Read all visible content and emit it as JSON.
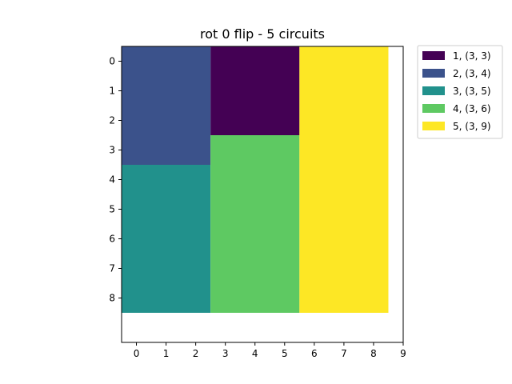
{
  "chart_data": {
    "type": "heatmap",
    "title": "rot 0 flip  - 5 circuits",
    "xlabel": "",
    "ylabel": "",
    "xlim": [
      -0.5,
      9
    ],
    "ylim": [
      9.5,
      -0.5
    ],
    "xticks": [
      0,
      1,
      2,
      3,
      4,
      5,
      6,
      7,
      8,
      9
    ],
    "yticks": [
      0,
      1,
      2,
      3,
      4,
      5,
      6,
      7,
      8
    ],
    "grid": false,
    "legend_position": "outside-top-right",
    "circuits": [
      {
        "id": 1,
        "label": "1, (3, 3)",
        "x": 3,
        "y": 0,
        "w": 3,
        "h": 3,
        "color": "#440154"
      },
      {
        "id": 2,
        "label": "2, (3, 4)",
        "x": 0,
        "y": 0,
        "w": 3,
        "h": 4,
        "color": "#3b528b"
      },
      {
        "id": 3,
        "label": "3, (3, 5)",
        "x": 0,
        "y": 4,
        "w": 3,
        "h": 5,
        "color": "#21918c"
      },
      {
        "id": 4,
        "label": "4, (3, 6)",
        "x": 3,
        "y": 3,
        "w": 3,
        "h": 6,
        "color": "#5ec962"
      },
      {
        "id": 5,
        "label": "5, (3, 9)",
        "x": 6,
        "y": 0,
        "w": 3,
        "h": 9,
        "color": "#fde725"
      }
    ]
  }
}
